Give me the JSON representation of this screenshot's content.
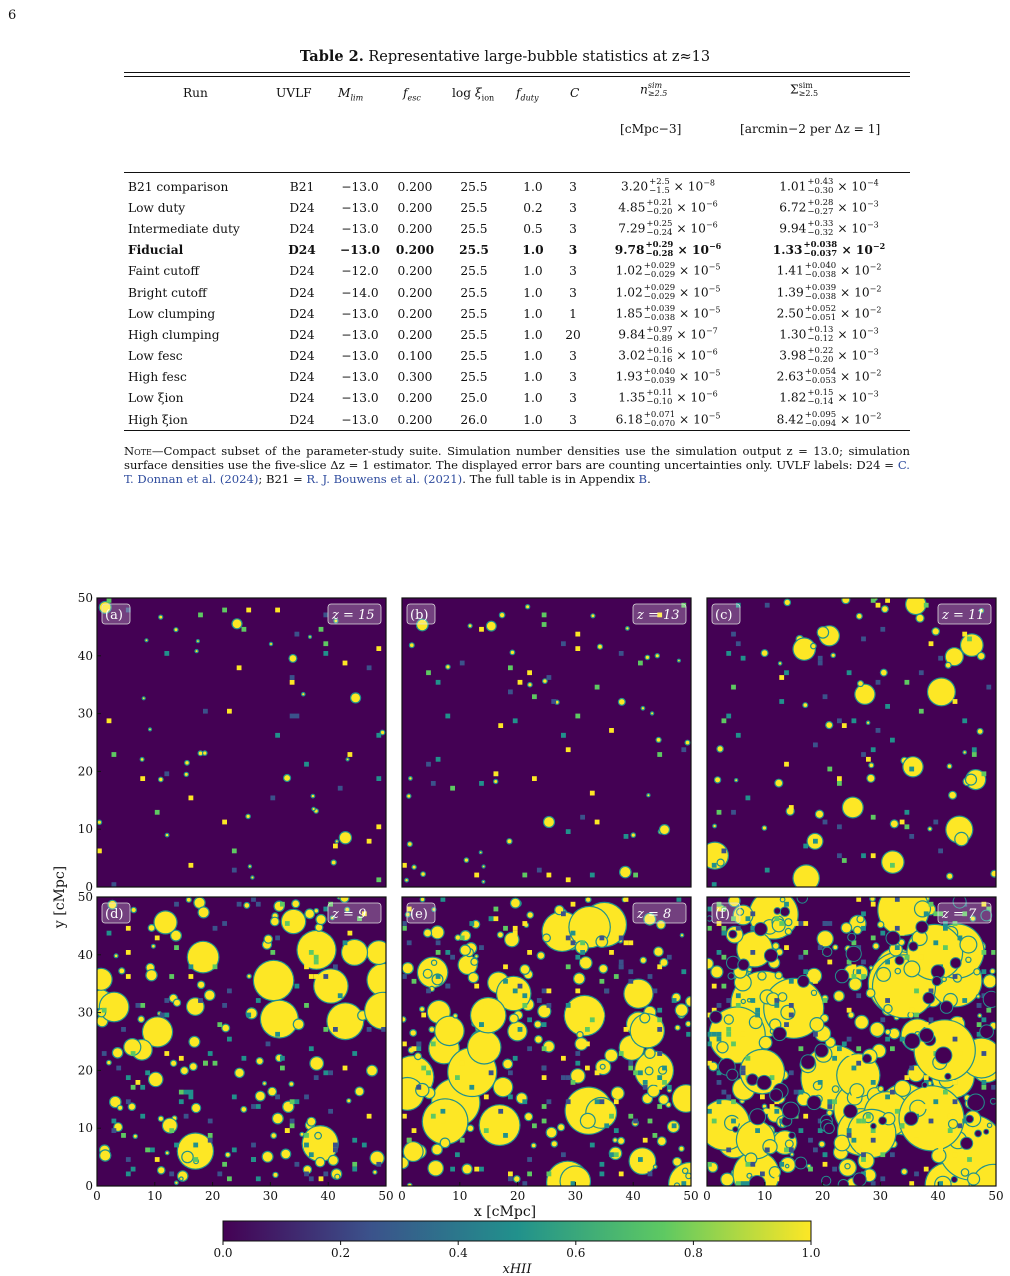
{
  "page_number": "6",
  "table": {
    "label": "Table 2.",
    "title": "Representative large-bubble statistics at z≈13",
    "headers": {
      "run": "Run",
      "uvlf": "UVLF",
      "mlim": "Mlim",
      "fesc": "fesc",
      "logxi": "log ξion",
      "fduty": "fduty",
      "c": "C",
      "n": "n≥2.5 sim",
      "n_unit": "[cMpc−3]",
      "sigma": "Σ≥2.5 sim",
      "sigma_unit": "[arcmin−2 per Δz = 1]"
    },
    "rows": [
      {
        "run": "B21 comparison",
        "uvlf": "B21",
        "mlim": "−13.0",
        "fesc": "0.200",
        "logxi": "25.5",
        "fduty": "1.0",
        "c": "3",
        "n_val": "3.20",
        "n_up": "+2.5",
        "n_dn": "−1.5",
        "n_exp": "−8",
        "s_val": "1.01",
        "s_up": "+0.43",
        "s_dn": "−0.30",
        "s_exp": "−4",
        "bold": false
      },
      {
        "run": "Low duty",
        "uvlf": "D24",
        "mlim": "−13.0",
        "fesc": "0.200",
        "logxi": "25.5",
        "fduty": "0.2",
        "c": "3",
        "n_val": "4.85",
        "n_up": "+0.21",
        "n_dn": "−0.20",
        "n_exp": "−6",
        "s_val": "6.72",
        "s_up": "+0.28",
        "s_dn": "−0.27",
        "s_exp": "−3",
        "bold": false
      },
      {
        "run": "Intermediate duty",
        "uvlf": "D24",
        "mlim": "−13.0",
        "fesc": "0.200",
        "logxi": "25.5",
        "fduty": "0.5",
        "c": "3",
        "n_val": "7.29",
        "n_up": "+0.25",
        "n_dn": "−0.24",
        "n_exp": "−6",
        "s_val": "9.94",
        "s_up": "+0.33",
        "s_dn": "−0.32",
        "s_exp": "−3",
        "bold": false
      },
      {
        "run": "Fiducial",
        "uvlf": "D24",
        "mlim": "−13.0",
        "fesc": "0.200",
        "logxi": "25.5",
        "fduty": "1.0",
        "c": "3",
        "n_val": "9.78",
        "n_up": "+0.29",
        "n_dn": "−0.28",
        "n_exp": "−6",
        "s_val": "1.33",
        "s_up": "+0.038",
        "s_dn": "−0.037",
        "s_exp": "−2",
        "bold": true
      },
      {
        "run": "Faint cutoff",
        "uvlf": "D24",
        "mlim": "−12.0",
        "fesc": "0.200",
        "logxi": "25.5",
        "fduty": "1.0",
        "c": "3",
        "n_val": "1.02",
        "n_up": "+0.029",
        "n_dn": "−0.029",
        "n_exp": "−5",
        "s_val": "1.41",
        "s_up": "+0.040",
        "s_dn": "−0.038",
        "s_exp": "−2",
        "bold": false
      },
      {
        "run": "Bright cutoff",
        "uvlf": "D24",
        "mlim": "−14.0",
        "fesc": "0.200",
        "logxi": "25.5",
        "fduty": "1.0",
        "c": "3",
        "n_val": "1.02",
        "n_up": "+0.029",
        "n_dn": "−0.029",
        "n_exp": "−5",
        "s_val": "1.39",
        "s_up": "+0.039",
        "s_dn": "−0.038",
        "s_exp": "−2",
        "bold": false
      },
      {
        "run": "Low clumping",
        "uvlf": "D24",
        "mlim": "−13.0",
        "fesc": "0.200",
        "logxi": "25.5",
        "fduty": "1.0",
        "c": "1",
        "n_val": "1.85",
        "n_up": "+0.039",
        "n_dn": "−0.038",
        "n_exp": "−5",
        "s_val": "2.50",
        "s_up": "+0.052",
        "s_dn": "−0.051",
        "s_exp": "−2",
        "bold": false
      },
      {
        "run": "High clumping",
        "uvlf": "D24",
        "mlim": "−13.0",
        "fesc": "0.200",
        "logxi": "25.5",
        "fduty": "1.0",
        "c": "20",
        "n_val": "9.84",
        "n_up": "+0.97",
        "n_dn": "−0.89",
        "n_exp": "−7",
        "s_val": "1.30",
        "s_up": "+0.13",
        "s_dn": "−0.12",
        "s_exp": "−3",
        "bold": false
      },
      {
        "run": "Low fesc",
        "uvlf": "D24",
        "mlim": "−13.0",
        "fesc": "0.100",
        "logxi": "25.5",
        "fduty": "1.0",
        "c": "3",
        "n_val": "3.02",
        "n_up": "+0.16",
        "n_dn": "−0.16",
        "n_exp": "−6",
        "s_val": "3.98",
        "s_up": "+0.22",
        "s_dn": "−0.20",
        "s_exp": "−3",
        "bold": false
      },
      {
        "run": "High fesc",
        "uvlf": "D24",
        "mlim": "−13.0",
        "fesc": "0.300",
        "logxi": "25.5",
        "fduty": "1.0",
        "c": "3",
        "n_val": "1.93",
        "n_up": "+0.040",
        "n_dn": "−0.039",
        "n_exp": "−5",
        "s_val": "2.63",
        "s_up": "+0.054",
        "s_dn": "−0.053",
        "s_exp": "−2",
        "bold": false
      },
      {
        "run": "Low ξion",
        "uvlf": "D24",
        "mlim": "−13.0",
        "fesc": "0.200",
        "logxi": "25.0",
        "fduty": "1.0",
        "c": "3",
        "n_val": "1.35",
        "n_up": "+0.11",
        "n_dn": "−0.10",
        "n_exp": "−6",
        "s_val": "1.82",
        "s_up": "+0.15",
        "s_dn": "−0.14",
        "s_exp": "−3",
        "bold": false
      },
      {
        "run": "High ξion",
        "uvlf": "D24",
        "mlim": "−13.0",
        "fesc": "0.200",
        "logxi": "26.0",
        "fduty": "1.0",
        "c": "3",
        "n_val": "6.18",
        "n_up": "+0.071",
        "n_dn": "−0.070",
        "n_exp": "−5",
        "s_val": "8.42",
        "s_up": "+0.095",
        "s_dn": "−0.094",
        "s_exp": "−2",
        "bold": false
      }
    ],
    "note_label": "Note",
    "note": "—Compact subset of the parameter-study suite. Simulation number densities use the simulation output z = 13.0; simulation surface densities use the five-slice Δz = 1 estimator. The displayed error bars are counting uncertainties only. UVLF labels: D24 = ",
    "ref1": "C. T. Donnan et al. (2024)",
    "note_mid": "; B21 = ",
    "ref2": "R. J. Bouwens et al. (2021)",
    "note_mid2": ". The full table is in Appendix ",
    "ref3": "B",
    "note_end": "."
  },
  "chart_data": {
    "type": "heatmap",
    "panels": [
      {
        "label": "(a)",
        "z_label": "z = 15"
      },
      {
        "label": "(b)",
        "z_label": "z = 13"
      },
      {
        "label": "(c)",
        "z_label": "z = 11"
      },
      {
        "label": "(d)",
        "z_label": "z = 9"
      },
      {
        "label": "(e)",
        "z_label": "z = 8"
      },
      {
        "label": "(f)",
        "z_label": "z = 7"
      }
    ],
    "xlabel": "x [cMpc]",
    "ylabel": "y [cMpc]",
    "xlim": [
      0,
      50
    ],
    "ylim": [
      0,
      50
    ],
    "xticks": [
      "0",
      "10",
      "20",
      "30",
      "40",
      "50"
    ],
    "yticks": [
      "0",
      "10",
      "20",
      "30",
      "40",
      "50"
    ],
    "colorbar": {
      "label": "xHII",
      "range": [
        0.0,
        1.0
      ],
      "ticks": [
        "0.0",
        "0.2",
        "0.4",
        "0.6",
        "0.8",
        "1.0"
      ],
      "colors": [
        "#440154",
        "#3b528b",
        "#21918c",
        "#5ec962",
        "#fde725"
      ]
    },
    "ionized_fraction_visual": [
      0.02,
      0.04,
      0.12,
      0.35,
      0.5,
      0.8
    ]
  }
}
